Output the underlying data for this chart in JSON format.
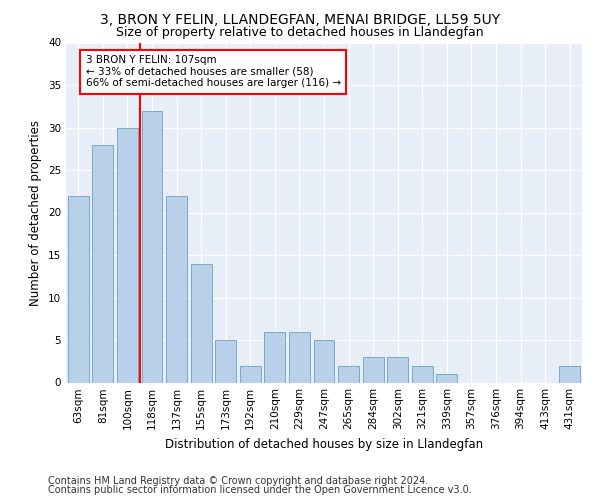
{
  "title": "3, BRON Y FELIN, LLANDEGFAN, MENAI BRIDGE, LL59 5UY",
  "subtitle": "Size of property relative to detached houses in Llandegfan",
  "xlabel": "Distribution of detached houses by size in Llandegfan",
  "ylabel": "Number of detached properties",
  "categories": [
    "63sqm",
    "81sqm",
    "100sqm",
    "118sqm",
    "137sqm",
    "155sqm",
    "173sqm",
    "192sqm",
    "210sqm",
    "229sqm",
    "247sqm",
    "265sqm",
    "284sqm",
    "302sqm",
    "321sqm",
    "339sqm",
    "357sqm",
    "376sqm",
    "394sqm",
    "413sqm",
    "431sqm"
  ],
  "values": [
    22,
    28,
    30,
    32,
    22,
    14,
    5,
    2,
    6,
    6,
    5,
    2,
    3,
    3,
    2,
    1,
    0,
    0,
    0,
    0,
    2
  ],
  "bar_color": "#b8d0e8",
  "bar_edge_color": "#7aaac8",
  "red_line_x": 2.5,
  "annotation_text": "3 BRON Y FELIN: 107sqm\n← 33% of detached houses are smaller (58)\n66% of semi-detached houses are larger (116) →",
  "ylim": [
    0,
    40
  ],
  "yticks": [
    0,
    5,
    10,
    15,
    20,
    25,
    30,
    35,
    40
  ],
  "footer_line1": "Contains HM Land Registry data © Crown copyright and database right 2024.",
  "footer_line2": "Contains public sector information licensed under the Open Government Licence v3.0.",
  "plot_bg_color": "#e8eef8",
  "fig_bg_color": "#ffffff",
  "grid_color": "#ffffff",
  "title_fontsize": 10,
  "subtitle_fontsize": 9,
  "axis_label_fontsize": 8.5,
  "tick_fontsize": 7.5,
  "annotation_fontsize": 7.5,
  "footer_fontsize": 7
}
